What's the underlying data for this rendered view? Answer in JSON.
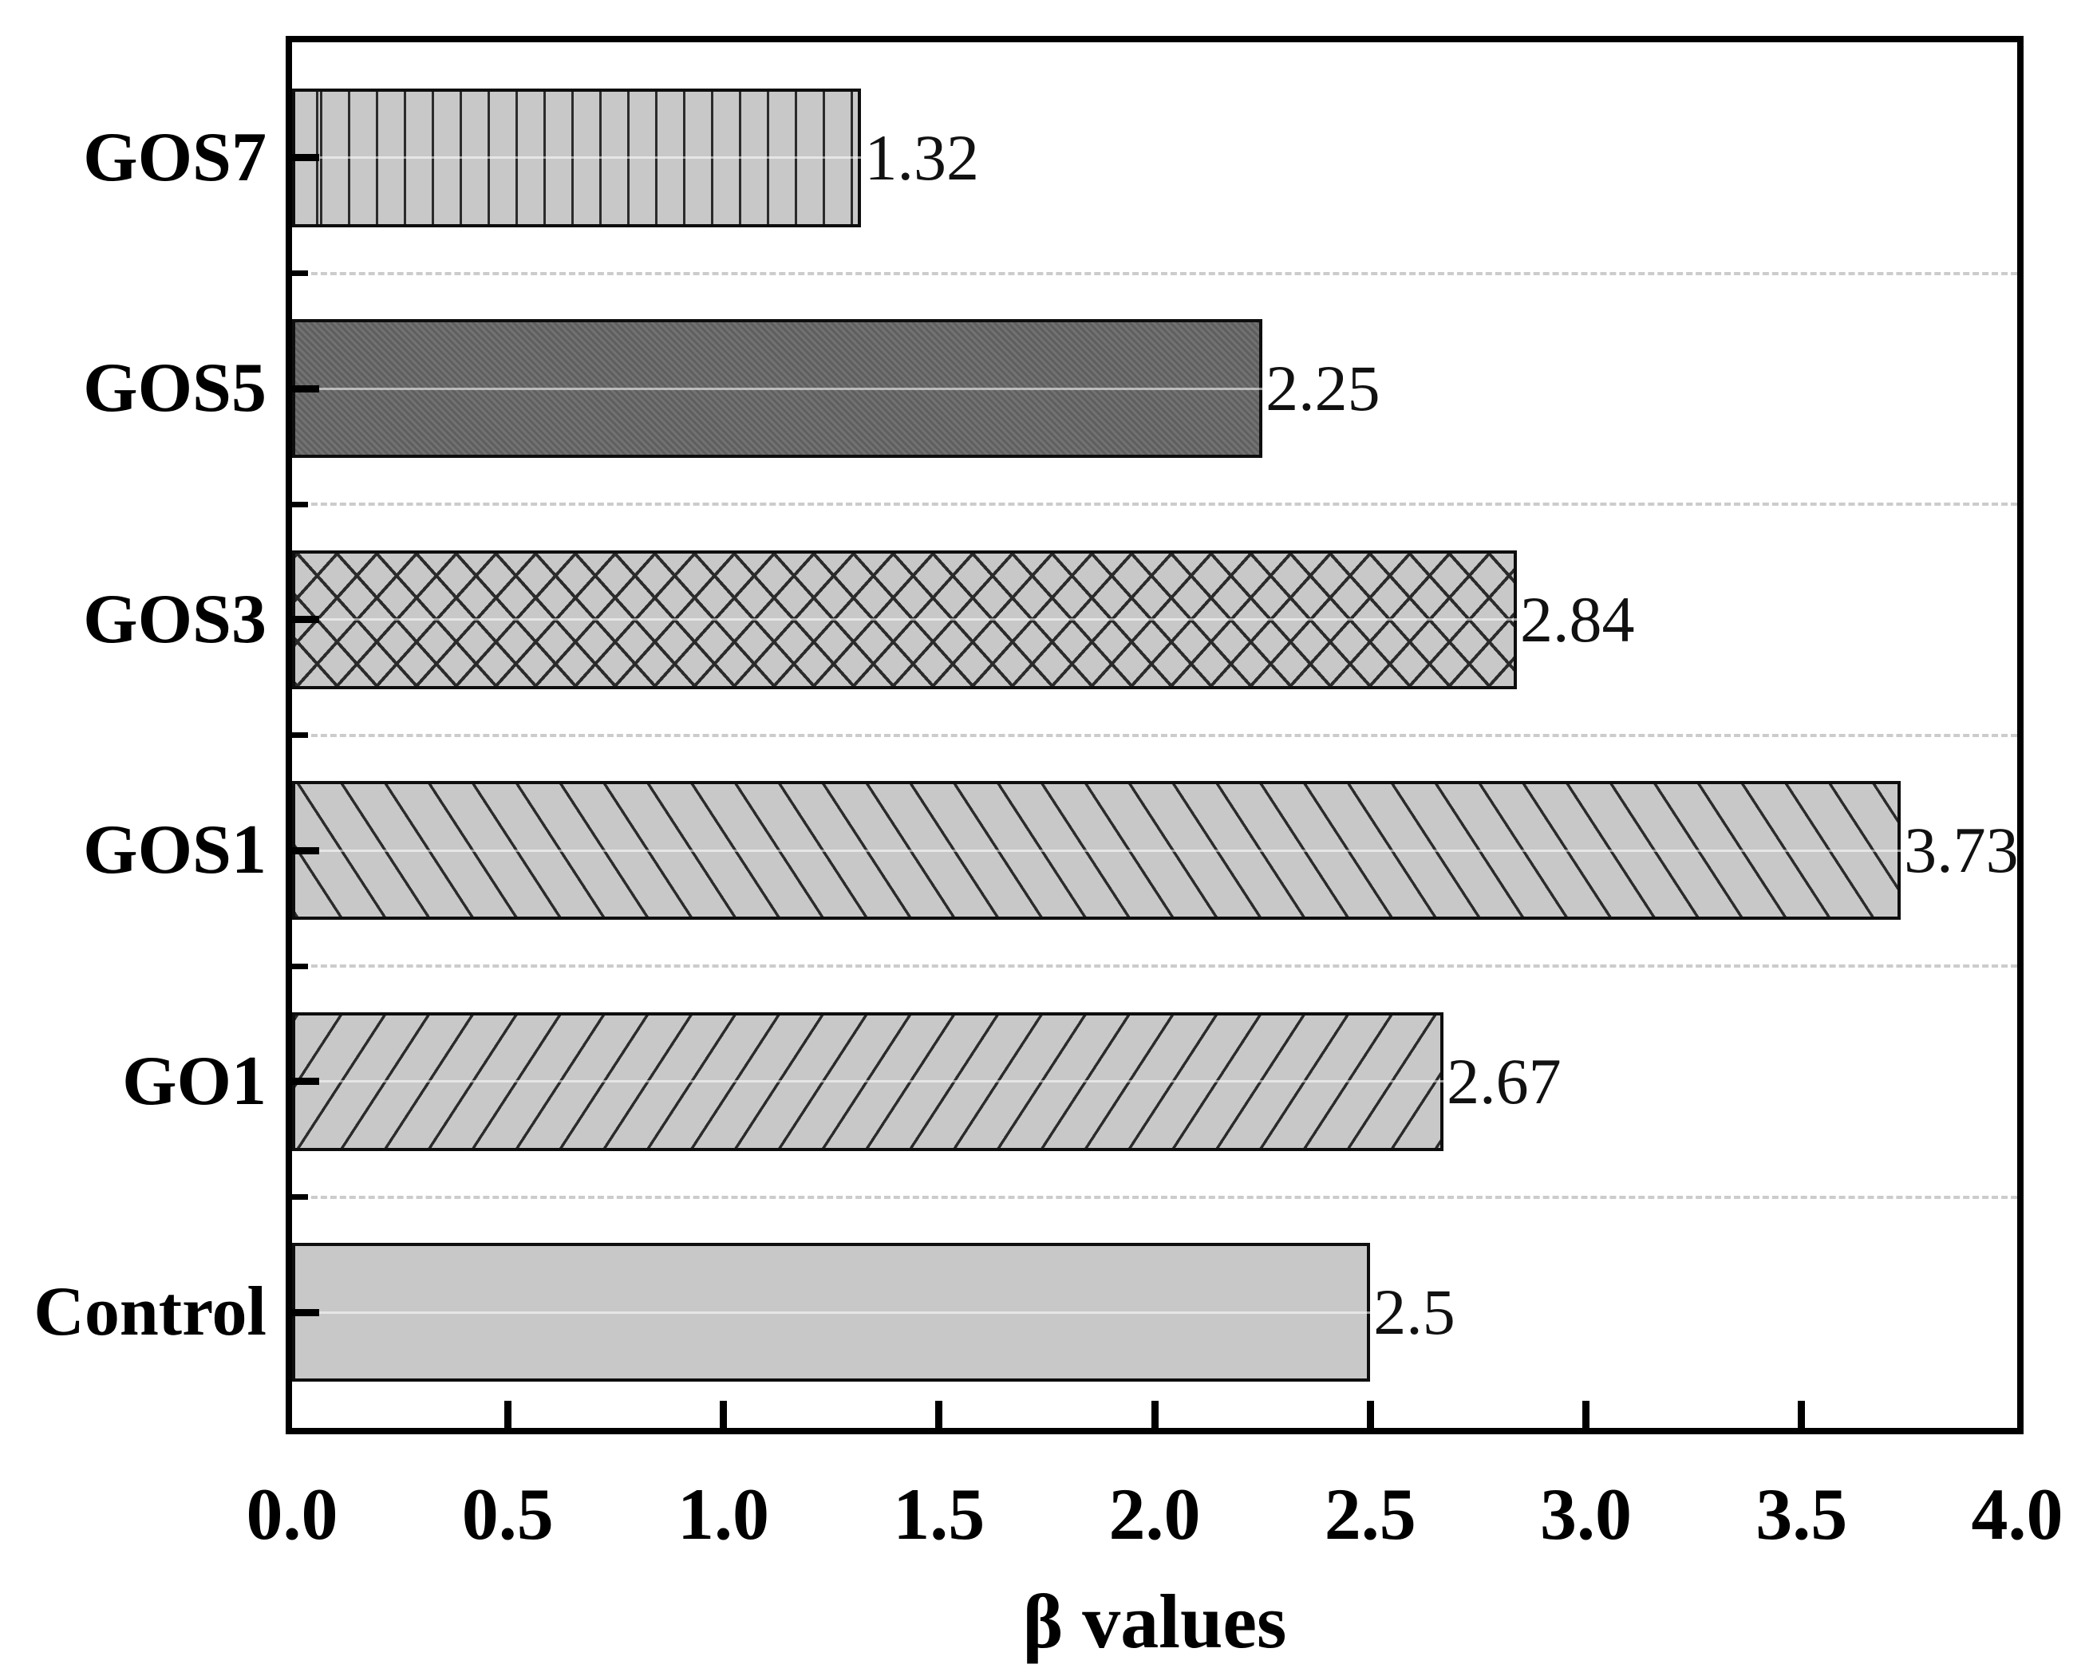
{
  "chart_data": {
    "type": "bar",
    "orientation": "horizontal",
    "title": "",
    "xlabel": "β values",
    "ylabel": "",
    "xlim": [
      0.0,
      4.0
    ],
    "x_tick_step": 0.5,
    "x_ticks": [
      "0.0",
      "0.5",
      "1.0",
      "1.5",
      "2.0",
      "2.5",
      "3.0",
      "3.5",
      "4.0"
    ],
    "categories_bottom_to_top": [
      "Control",
      "GO1",
      "GOS1",
      "GOS3",
      "GOS5",
      "GOS7"
    ],
    "grid": "dashed horizontal lines between categories",
    "legend": "none",
    "bars": [
      {
        "label": "GOS7",
        "value": 1.32,
        "value_label": "1.32",
        "pattern": "vertical-lines",
        "fill": "#c8c8c8"
      },
      {
        "label": "GOS5",
        "value": 2.25,
        "value_label": "2.25",
        "pattern": "solid-dark",
        "fill": "#676767"
      },
      {
        "label": "GOS3",
        "value": 2.84,
        "value_label": "2.84",
        "pattern": "crosshatch",
        "fill": "#c8c8c8"
      },
      {
        "label": "GOS1",
        "value": 3.73,
        "value_label": "3.73",
        "pattern": "diagonal-backslash",
        "fill": "#c8c8c8"
      },
      {
        "label": "GO1",
        "value": 2.67,
        "value_label": "2.67",
        "pattern": "diagonal-slash",
        "fill": "#c8c8c8"
      },
      {
        "label": "Control",
        "value": 2.5,
        "value_label": "2.5",
        "pattern": "solid-light",
        "fill": "#c8c8c8"
      }
    ],
    "colors": {
      "light_bar_fill": "#c8c8c8",
      "dark_bar_fill": "#676767",
      "hatch_line": "#2b2b2b",
      "bar_border": "#0e0e0e",
      "axis_spine": "#000000",
      "gridline": "#cccccc",
      "text": "#000000",
      "value_text": "#111111",
      "background": "#ffffff"
    }
  }
}
